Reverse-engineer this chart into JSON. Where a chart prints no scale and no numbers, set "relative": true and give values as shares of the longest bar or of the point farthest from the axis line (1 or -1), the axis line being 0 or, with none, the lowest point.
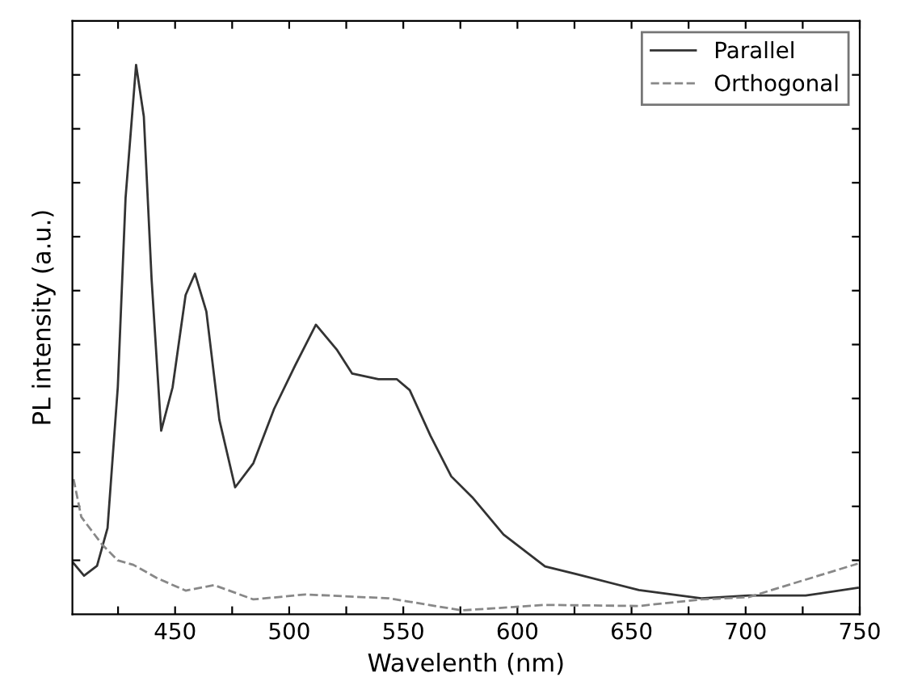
{
  "chart_data": {
    "type": "line",
    "xlabel": "Wavelenth (nm)",
    "ylabel": "PL intensity (a.u.)",
    "relative": true,
    "xlim": [
      405,
      750
    ],
    "xticks": [
      {
        "value": 425,
        "label": null
      },
      450,
      {
        "value": 475,
        "label": null
      },
      500,
      {
        "value": 525,
        "label": null
      },
      550,
      {
        "value": 575,
        "label": null
      },
      600,
      {
        "value": 625,
        "label": null
      },
      650,
      {
        "value": 675,
        "label": null
      },
      700,
      {
        "value": 725,
        "label": null
      },
      750
    ],
    "grid": false,
    "legend": "top right",
    "marker": "none",
    "series": [
      {
        "name": "Parallel",
        "color": "#333333",
        "line_style": "solid",
        "x": [
          405.5,
          410.1,
          415.8,
          420.4,
          424.9,
          428.3,
          432.9,
          436.3,
          439.7,
          443.9,
          448.9,
          454.6,
          458.7,
          463.7,
          469.4,
          476.3,
          484.3,
          493.4,
          502.6,
          511.7,
          520.8,
          527.6,
          539.1,
          547.1,
          552.8,
          561.9,
          571.0,
          580.2,
          593.9,
          612.1,
          625.8,
          653.2,
          680.6,
          701.2,
          726.3,
          749.1
        ],
        "values": [
          0.093,
          0.07,
          0.088,
          0.157,
          0.414,
          0.758,
          1.0,
          0.906,
          0.61,
          0.334,
          0.413,
          0.581,
          0.62,
          0.551,
          0.354,
          0.231,
          0.275,
          0.374,
          0.453,
          0.527,
          0.482,
          0.438,
          0.428,
          0.428,
          0.408,
          0.325,
          0.251,
          0.213,
          0.145,
          0.087,
          0.073,
          0.044,
          0.029,
          0.034,
          0.034,
          0.048
        ]
      },
      {
        "name": "Orthogonal",
        "color": "#888888",
        "line_style": "dashed",
        "x": [
          405.5,
          408.9,
          418.0,
          424.9,
          431.7,
          442.0,
          454.6,
          467.1,
          484.3,
          507.1,
          543.7,
          575.6,
          612.1,
          653.2,
          680.6,
          701.2,
          726.3,
          749.1
        ],
        "values": [
          0.246,
          0.177,
          0.127,
          0.098,
          0.09,
          0.066,
          0.043,
          0.053,
          0.027,
          0.036,
          0.029,
          0.007,
          0.017,
          0.015,
          0.027,
          0.031,
          0.063,
          0.092
        ]
      }
    ]
  }
}
